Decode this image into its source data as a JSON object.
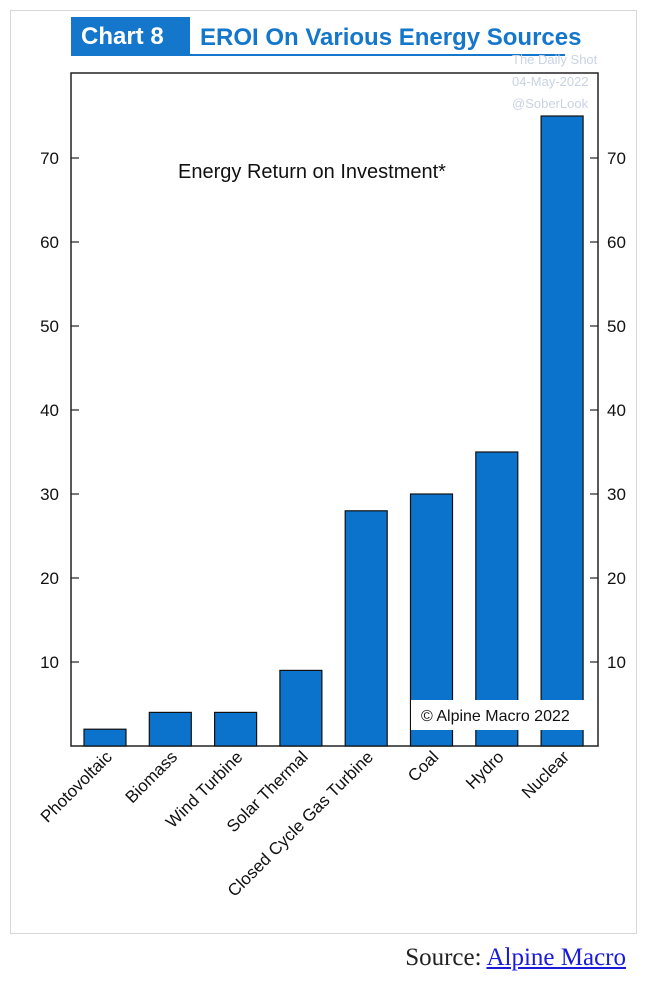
{
  "badge": "Chart 8",
  "title": "EROI On Various Energy Sources",
  "watermark": {
    "line1": "The Daily Shot",
    "line2": "04-May-2022",
    "line3": "@SoberLook"
  },
  "footer": {
    "source_prefix": "Source:",
    "source_link": "Alpine Macro"
  },
  "colors": {
    "accent": "#1577cc",
    "bar": "#0b73cc"
  },
  "chart_data": {
    "type": "bar",
    "title": "Energy Return on Investment*",
    "copyright": "© Alpine Macro 2022",
    "categories": [
      "Photovoltaic",
      "Biomass",
      "Wind Turbine",
      "Solar Thermal",
      "Closed Cycle Gas Turbine",
      "Coal",
      "Hydro",
      "Nuclear"
    ],
    "values": [
      2,
      4,
      4,
      9,
      28,
      30,
      35,
      75
    ],
    "ylim": [
      0,
      80
    ],
    "yticks": [
      10,
      20,
      30,
      40,
      50,
      60,
      70
    ],
    "axes": "left and right",
    "grid": false,
    "legend": "none"
  }
}
